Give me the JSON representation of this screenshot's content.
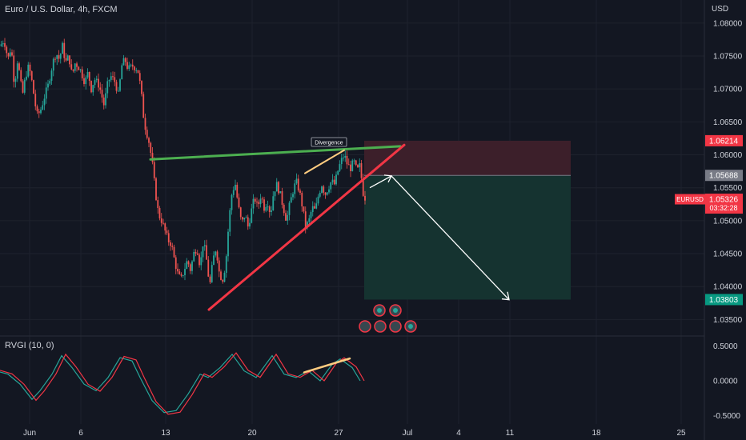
{
  "header": {
    "symbol_title": "Euro / U.S. Dollar, 4h, FXCM",
    "currency": "USD"
  },
  "indicator": {
    "title": "RVGI (10, 0)",
    "axis_ticks": [
      "0.5000",
      "0.0000",
      "-0.5000"
    ]
  },
  "annotations": {
    "divergence_label": "Divergence"
  },
  "price_tags": {
    "stop": "1.06214",
    "entry": "1.05688",
    "symbol": "EURUSD",
    "last": "1.05326",
    "countdown": "03:32:28",
    "target": "1.03803"
  },
  "colors": {
    "background": "#131722",
    "up_candle": "#26a69a",
    "down_candle": "#ef5350",
    "wedge_support": "#f23645",
    "wedge_resistance": "#4caf50",
    "divergence": "#ffcc80",
    "stop_zone": "#3c1f2a",
    "target_zone": "#153330"
  },
  "chart_data": {
    "type": "candlestick",
    "instrument": "EURUSD",
    "timeframe": "4h",
    "ylim": [
      1.0325,
      1.0835
    ],
    "y_ticks": [
      "1.08000",
      "1.07500",
      "1.07000",
      "1.06500",
      "1.06000",
      "1.05500",
      "1.05000",
      "1.04500",
      "1.04000",
      "1.03500"
    ],
    "x_ticks": [
      "Jun",
      "6",
      "13",
      "20",
      "27",
      "Jul",
      "4",
      "11",
      "18",
      "25"
    ],
    "close_path": [
      [
        0,
        1.0765
      ],
      [
        5,
        1.0775
      ],
      [
        10,
        1.0745
      ],
      [
        14,
        1.0765
      ],
      [
        18,
        1.0705
      ],
      [
        22,
        1.0745
      ],
      [
        28,
        1.069
      ],
      [
        32,
        1.072
      ],
      [
        36,
        1.0735
      ],
      [
        40,
        1.071
      ],
      [
        46,
        1.066
      ],
      [
        50,
        1.0665
      ],
      [
        56,
        1.069
      ],
      [
        60,
        1.0705
      ],
      [
        66,
        1.074
      ],
      [
        70,
        1.0755
      ],
      [
        74,
        1.0745
      ],
      [
        78,
        1.0765
      ],
      [
        82,
        1.074
      ],
      [
        86,
        1.075
      ],
      [
        90,
        1.072
      ],
      [
        94,
        1.074
      ],
      [
        100,
        1.073
      ],
      [
        106,
        1.071
      ],
      [
        110,
        1.0725
      ],
      [
        114,
        1.07
      ],
      [
        118,
        1.0715
      ],
      [
        124,
        1.0705
      ],
      [
        130,
        1.0675
      ],
      [
        134,
        1.0705
      ],
      [
        138,
        1.072
      ],
      [
        144,
        1.071
      ],
      [
        148,
        1.069
      ],
      [
        152,
        1.0735
      ],
      [
        156,
        1.0745
      ],
      [
        160,
        1.073
      ],
      [
        166,
        1.0735
      ],
      [
        172,
        1.073
      ],
      [
        176,
        1.07
      ],
      [
        180,
        1.065
      ],
      [
        186,
        1.062
      ],
      [
        190,
        1.059
      ],
      [
        194,
        1.0545
      ],
      [
        198,
        1.051
      ],
      [
        202,
        1.05
      ],
      [
        206,
        1.0485
      ],
      [
        210,
        1.047
      ],
      [
        214,
        1.0465
      ],
      [
        218,
        1.044
      ],
      [
        222,
        1.042
      ],
      [
        226,
        1.041
      ],
      [
        230,
        1.0425
      ],
      [
        234,
        1.044
      ],
      [
        238,
        1.0425
      ],
      [
        242,
        1.045
      ],
      [
        246,
        1.046
      ],
      [
        250,
        1.043
      ],
      [
        254,
        1.047
      ],
      [
        258,
        1.044
      ],
      [
        262,
        1.04
      ],
      [
        266,
        1.044
      ],
      [
        270,
        1.046
      ],
      [
        274,
        1.042
      ],
      [
        278,
        1.041
      ],
      [
        282,
        1.0435
      ],
      [
        286,
        1.05
      ],
      [
        290,
        1.0545
      ],
      [
        294,
        1.0555
      ],
      [
        298,
        1.052
      ],
      [
        302,
        1.0495
      ],
      [
        306,
        1.051
      ],
      [
        310,
        1.049
      ],
      [
        314,
        1.0515
      ],
      [
        318,
        1.0535
      ],
      [
        322,
        1.052
      ],
      [
        326,
        1.054
      ],
      [
        330,
        1.052
      ],
      [
        334,
        1.053
      ],
      [
        338,
        1.051
      ],
      [
        342,
        1.0545
      ],
      [
        346,
        1.0555
      ],
      [
        350,
        1.054
      ],
      [
        354,
        1.052
      ],
      [
        358,
        1.05
      ],
      [
        362,
        1.0525
      ],
      [
        366,
        1.0545
      ],
      [
        370,
        1.056
      ],
      [
        374,
        1.0545
      ],
      [
        378,
        1.052
      ],
      [
        382,
        1.049
      ],
      [
        386,
        1.05
      ],
      [
        390,
        1.052
      ],
      [
        394,
        1.0515
      ],
      [
        398,
        1.054
      ],
      [
        402,
        1.0555
      ],
      [
        406,
        1.054
      ],
      [
        410,
        1.055
      ],
      [
        414,
        1.056
      ],
      [
        418,
        1.0555
      ],
      [
        422,
        1.0575
      ],
      [
        426,
        1.059
      ],
      [
        430,
        1.06
      ],
      [
        434,
        1.0585
      ],
      [
        438,
        1.058
      ],
      [
        442,
        1.059
      ],
      [
        446,
        1.0575
      ],
      [
        450,
        1.0585
      ],
      [
        453,
        1.0545
      ],
      [
        456,
        1.0535
      ]
    ],
    "drawings": {
      "rising_support_line": {
        "from": [
          "~Jun 15",
          1.0365
        ],
        "to": [
          "~Jun 30",
          1.0615
        ]
      },
      "resistance_line": {
        "from": [
          "~Jun 11",
          1.0593
        ],
        "to": [
          "~Jun 30",
          1.0613
        ]
      },
      "divergence_price_line": {
        "from": [
          "~Jun 24",
          1.0572
        ],
        "to": [
          "~Jun 27",
          1.0607
        ]
      },
      "projection_arrow": [
        [
          1.055,
          1.0568
        ],
        [
          1.0568,
          1.038
        ]
      ]
    },
    "position": {
      "type": "short",
      "stop": 1.06214,
      "entry": 1.05688,
      "target": 1.03803,
      "last_price": 1.05326
    }
  }
}
